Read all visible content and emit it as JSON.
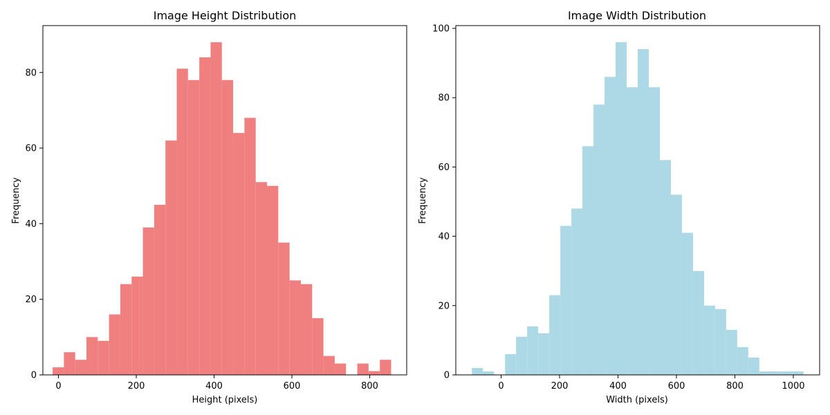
{
  "chart_data": [
    {
      "type": "bar",
      "title": "Image Height Distribution",
      "xlabel": "Height (pixels)",
      "ylabel": "Frequency",
      "color": "#f08080",
      "xlim": [
        -40,
        895
      ],
      "ylim": [
        0,
        92.4
      ],
      "xticks": [
        0,
        200,
        400,
        600,
        800
      ],
      "yticks": [
        0,
        20,
        40,
        60,
        80
      ],
      "bin_edges": [
        -15,
        14,
        43,
        72,
        101,
        130,
        159,
        188,
        217,
        246,
        275,
        304,
        333,
        362,
        391,
        420,
        449,
        478,
        507,
        536,
        565,
        594,
        623,
        652,
        681,
        710,
        739,
        768,
        797,
        826,
        855
      ],
      "values": [
        2,
        6,
        4,
        10,
        9,
        16,
        24,
        26,
        39,
        45,
        62,
        81,
        78,
        84,
        88,
        78,
        64,
        68,
        51,
        50,
        35,
        25,
        24,
        15,
        5,
        3,
        0,
        3,
        1,
        4
      ],
      "grid": false,
      "legend": "none"
    },
    {
      "type": "bar",
      "title": "Image Width Distribution",
      "xlabel": "Width (pixels)",
      "ylabel": "Frequency",
      "color": "#add8e6",
      "xlim": [
        -155,
        1090
      ],
      "ylim": [
        0,
        100.8
      ],
      "xticks": [
        0,
        200,
        400,
        600,
        800,
        1000
      ],
      "yticks": [
        0,
        20,
        40,
        60,
        80,
        100
      ],
      "bin_edges": [
        -100,
        -62.2,
        -24.3,
        13.5,
        51.3,
        89.2,
        127,
        164.8,
        202.7,
        240.5,
        278.3,
        316.2,
        354,
        391.8,
        429.7,
        467.5,
        505.3,
        543.2,
        581,
        618.8,
        656.7,
        694.5,
        732.3,
        770.2,
        808,
        845.8,
        883.7,
        921.5,
        959.3,
        997.2,
        1035
      ],
      "values": [
        2,
        1,
        0,
        6,
        11,
        14,
        12,
        23,
        43,
        48,
        66,
        78,
        86,
        96,
        83,
        94,
        83,
        62,
        52,
        41,
        30,
        20,
        19,
        13,
        8,
        5,
        1,
        1,
        1,
        1
      ],
      "grid": false,
      "legend": "none"
    }
  ]
}
